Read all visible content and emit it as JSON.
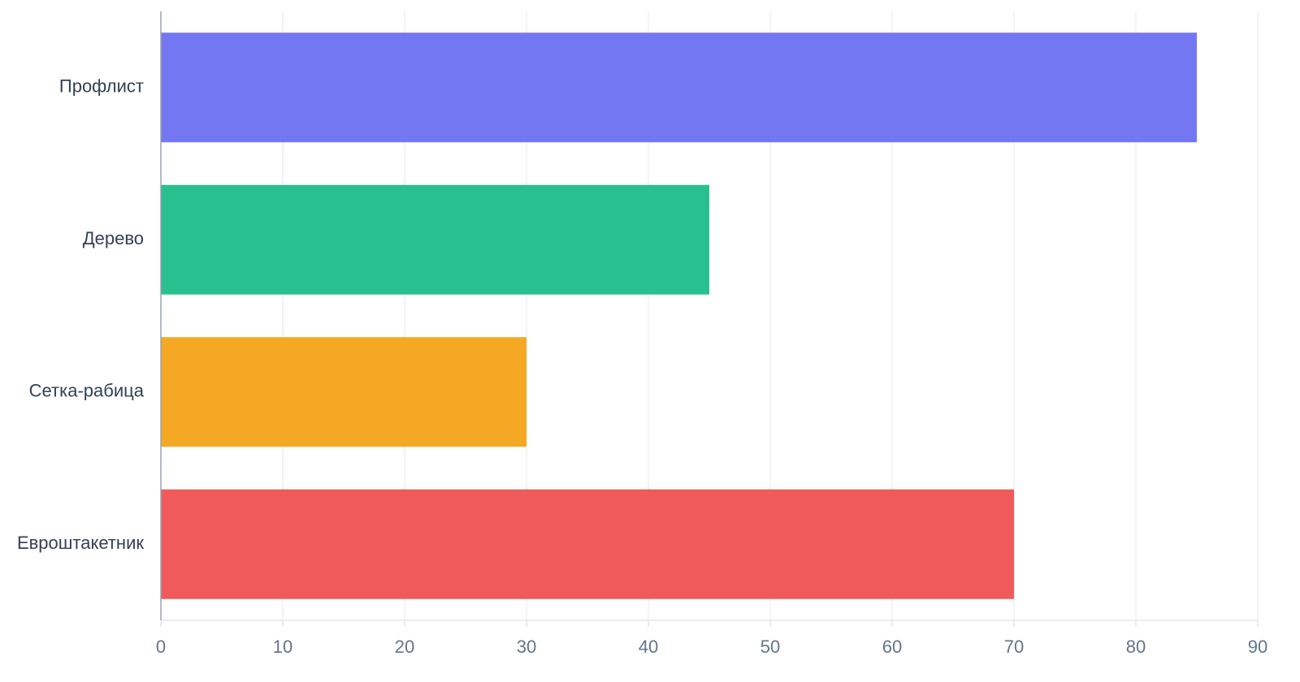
{
  "chart_data": {
    "type": "bar",
    "orientation": "horizontal",
    "categories": [
      "Профлист",
      "Дерево",
      "Сетка-рабица",
      "Евроштакетник"
    ],
    "values": [
      85,
      45,
      30,
      70
    ],
    "colors": [
      "#7477f2",
      "#28c08f",
      "#f5a823",
      "#f05a5a"
    ],
    "xlim": [
      0,
      90
    ],
    "xticks": [
      0,
      10,
      20,
      30,
      40,
      50,
      60,
      70,
      80,
      90
    ],
    "grid": true
  }
}
